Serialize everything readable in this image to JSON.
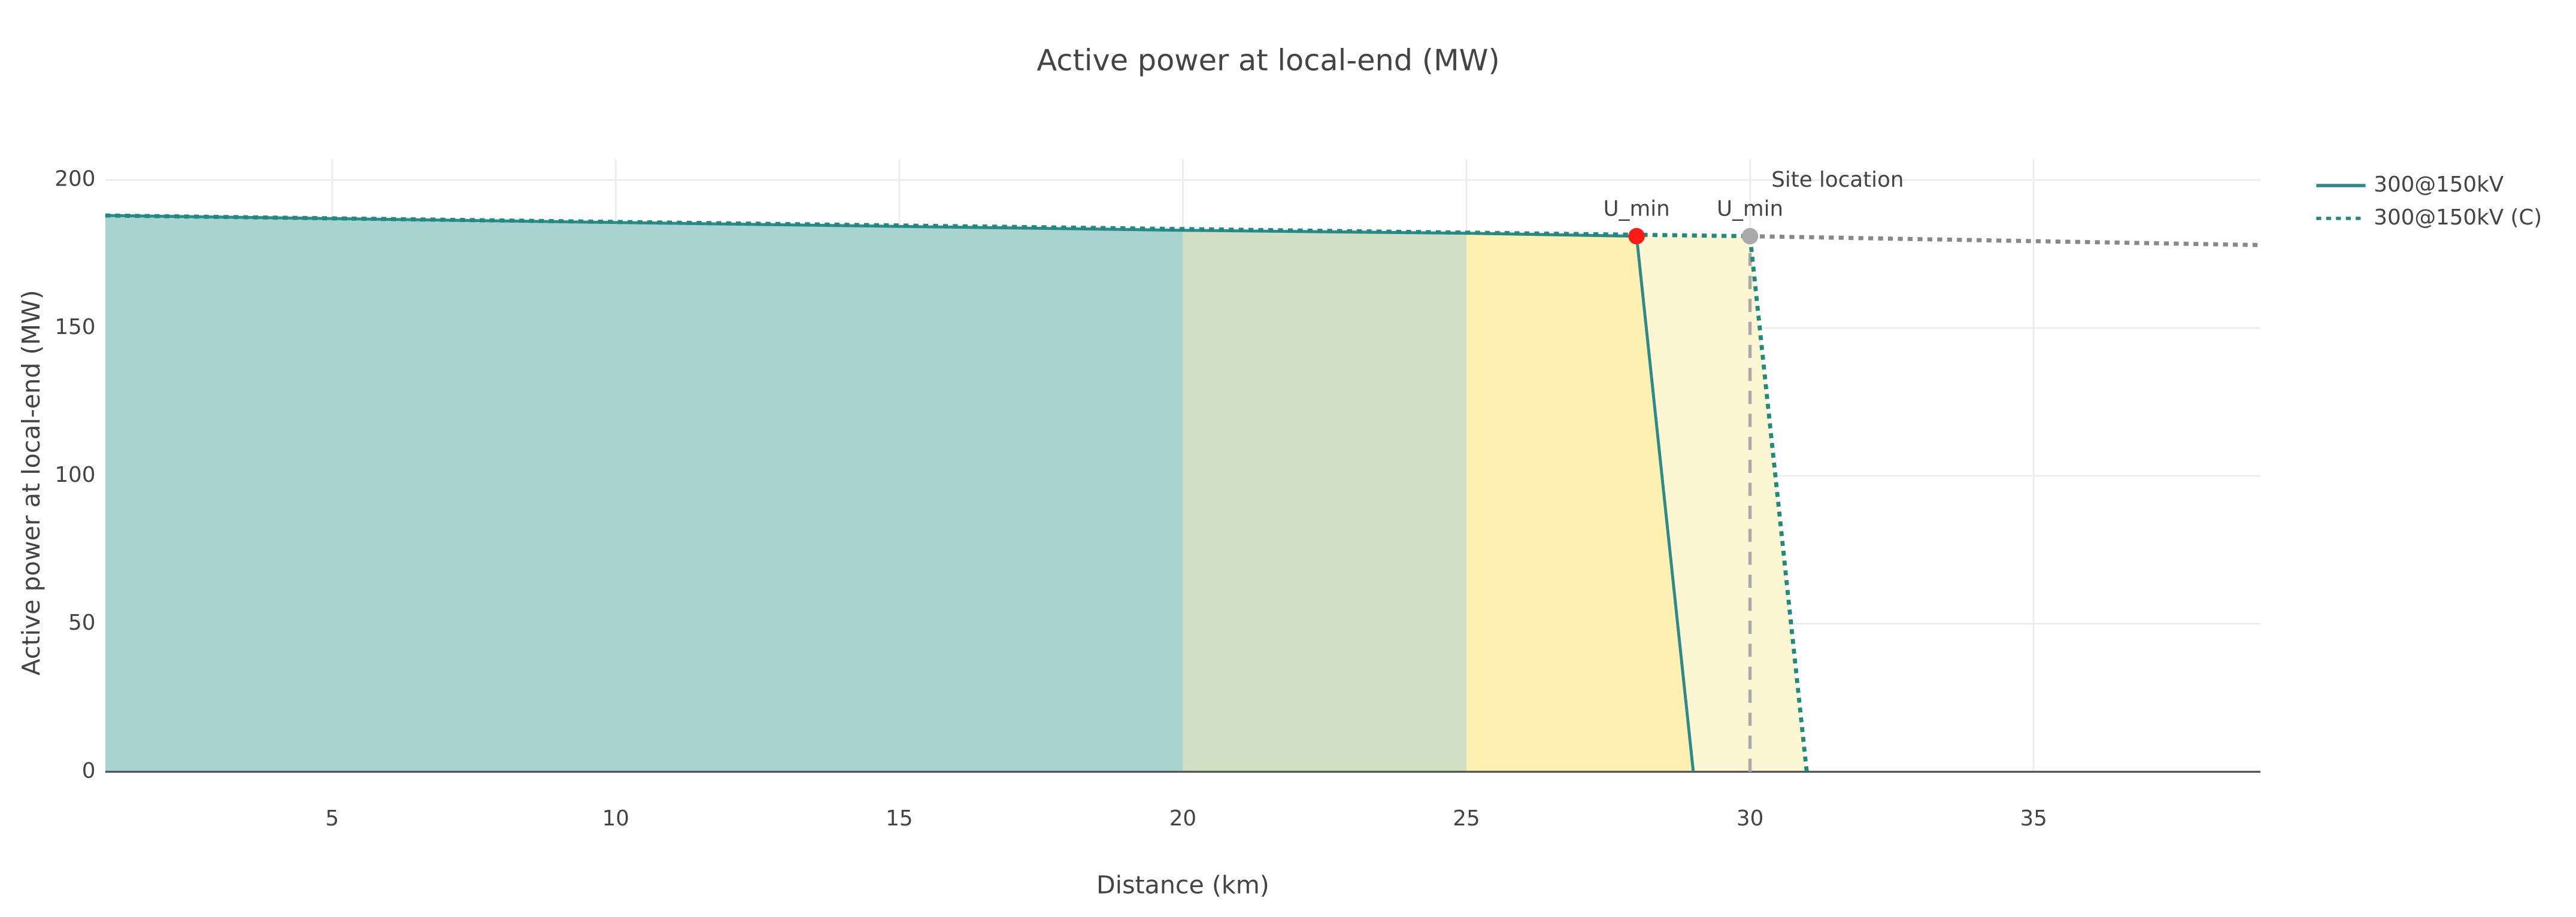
{
  "chart_data": {
    "type": "line",
    "title": "Active power at local-end (MW)",
    "x_label": "Distance (km)",
    "y_label": "Active power at local-end (MW)",
    "xlim": [
      1,
      39
    ],
    "ylim": [
      0,
      207
    ],
    "xticks": [
      5,
      10,
      15,
      20,
      25,
      30,
      35
    ],
    "yticks": [
      0,
      50,
      100,
      150,
      200
    ],
    "grid": true,
    "legend": "right",
    "series": [
      {
        "name": "300@150kV",
        "color": "#2b8a8a",
        "dash": "solid",
        "x": [
          1,
          20,
          25,
          28,
          29
        ],
        "values": [
          188,
          183,
          182,
          181,
          0
        ]
      },
      {
        "name": "300@150kV (C)",
        "color": "#1f8a80",
        "dash": "dot",
        "x": [
          1,
          30,
          31
        ],
        "values": [
          188,
          181,
          0
        ]
      },
      {
        "color": "#888888",
        "dash": "dot",
        "x": [
          30,
          39
        ],
        "values": [
          181,
          178
        ]
      }
    ],
    "fills": [
      {
        "series": 1,
        "x": [
          25,
          31
        ],
        "color": "#fdf6d2"
      },
      {
        "series": 0,
        "x": [
          25,
          29
        ],
        "color": "#fdf0b0"
      },
      {
        "series": 0,
        "x": [
          20,
          25
        ],
        "color": "#d1e0c4"
      },
      {
        "series": 0,
        "x": [
          1,
          20
        ],
        "color": "#a9d3d0"
      }
    ],
    "markers": [
      {
        "x": 28,
        "y": 181,
        "color": "#ff1a1a",
        "label": "U_min"
      },
      {
        "x": 30,
        "y": 181,
        "color": "#aaaaaa",
        "label": "U_min"
      }
    ],
    "vline": {
      "x": 30,
      "label": "Site location",
      "color": "#aaaaaa"
    }
  }
}
